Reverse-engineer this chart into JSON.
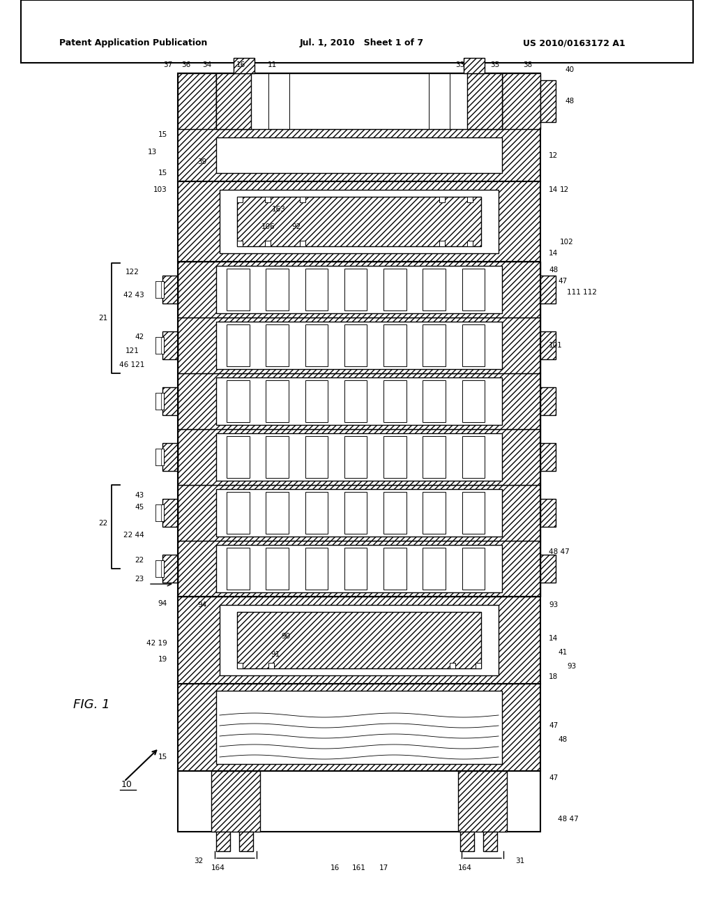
{
  "title_left": "Patent Application Publication",
  "title_mid": "Jul. 1, 2010   Sheet 1 of 7",
  "title_right": "US 2010/0163172 A1",
  "fig_label": "FIG. 1",
  "ref_label": "10",
  "background_color": "#ffffff",
  "line_color": "#000000"
}
